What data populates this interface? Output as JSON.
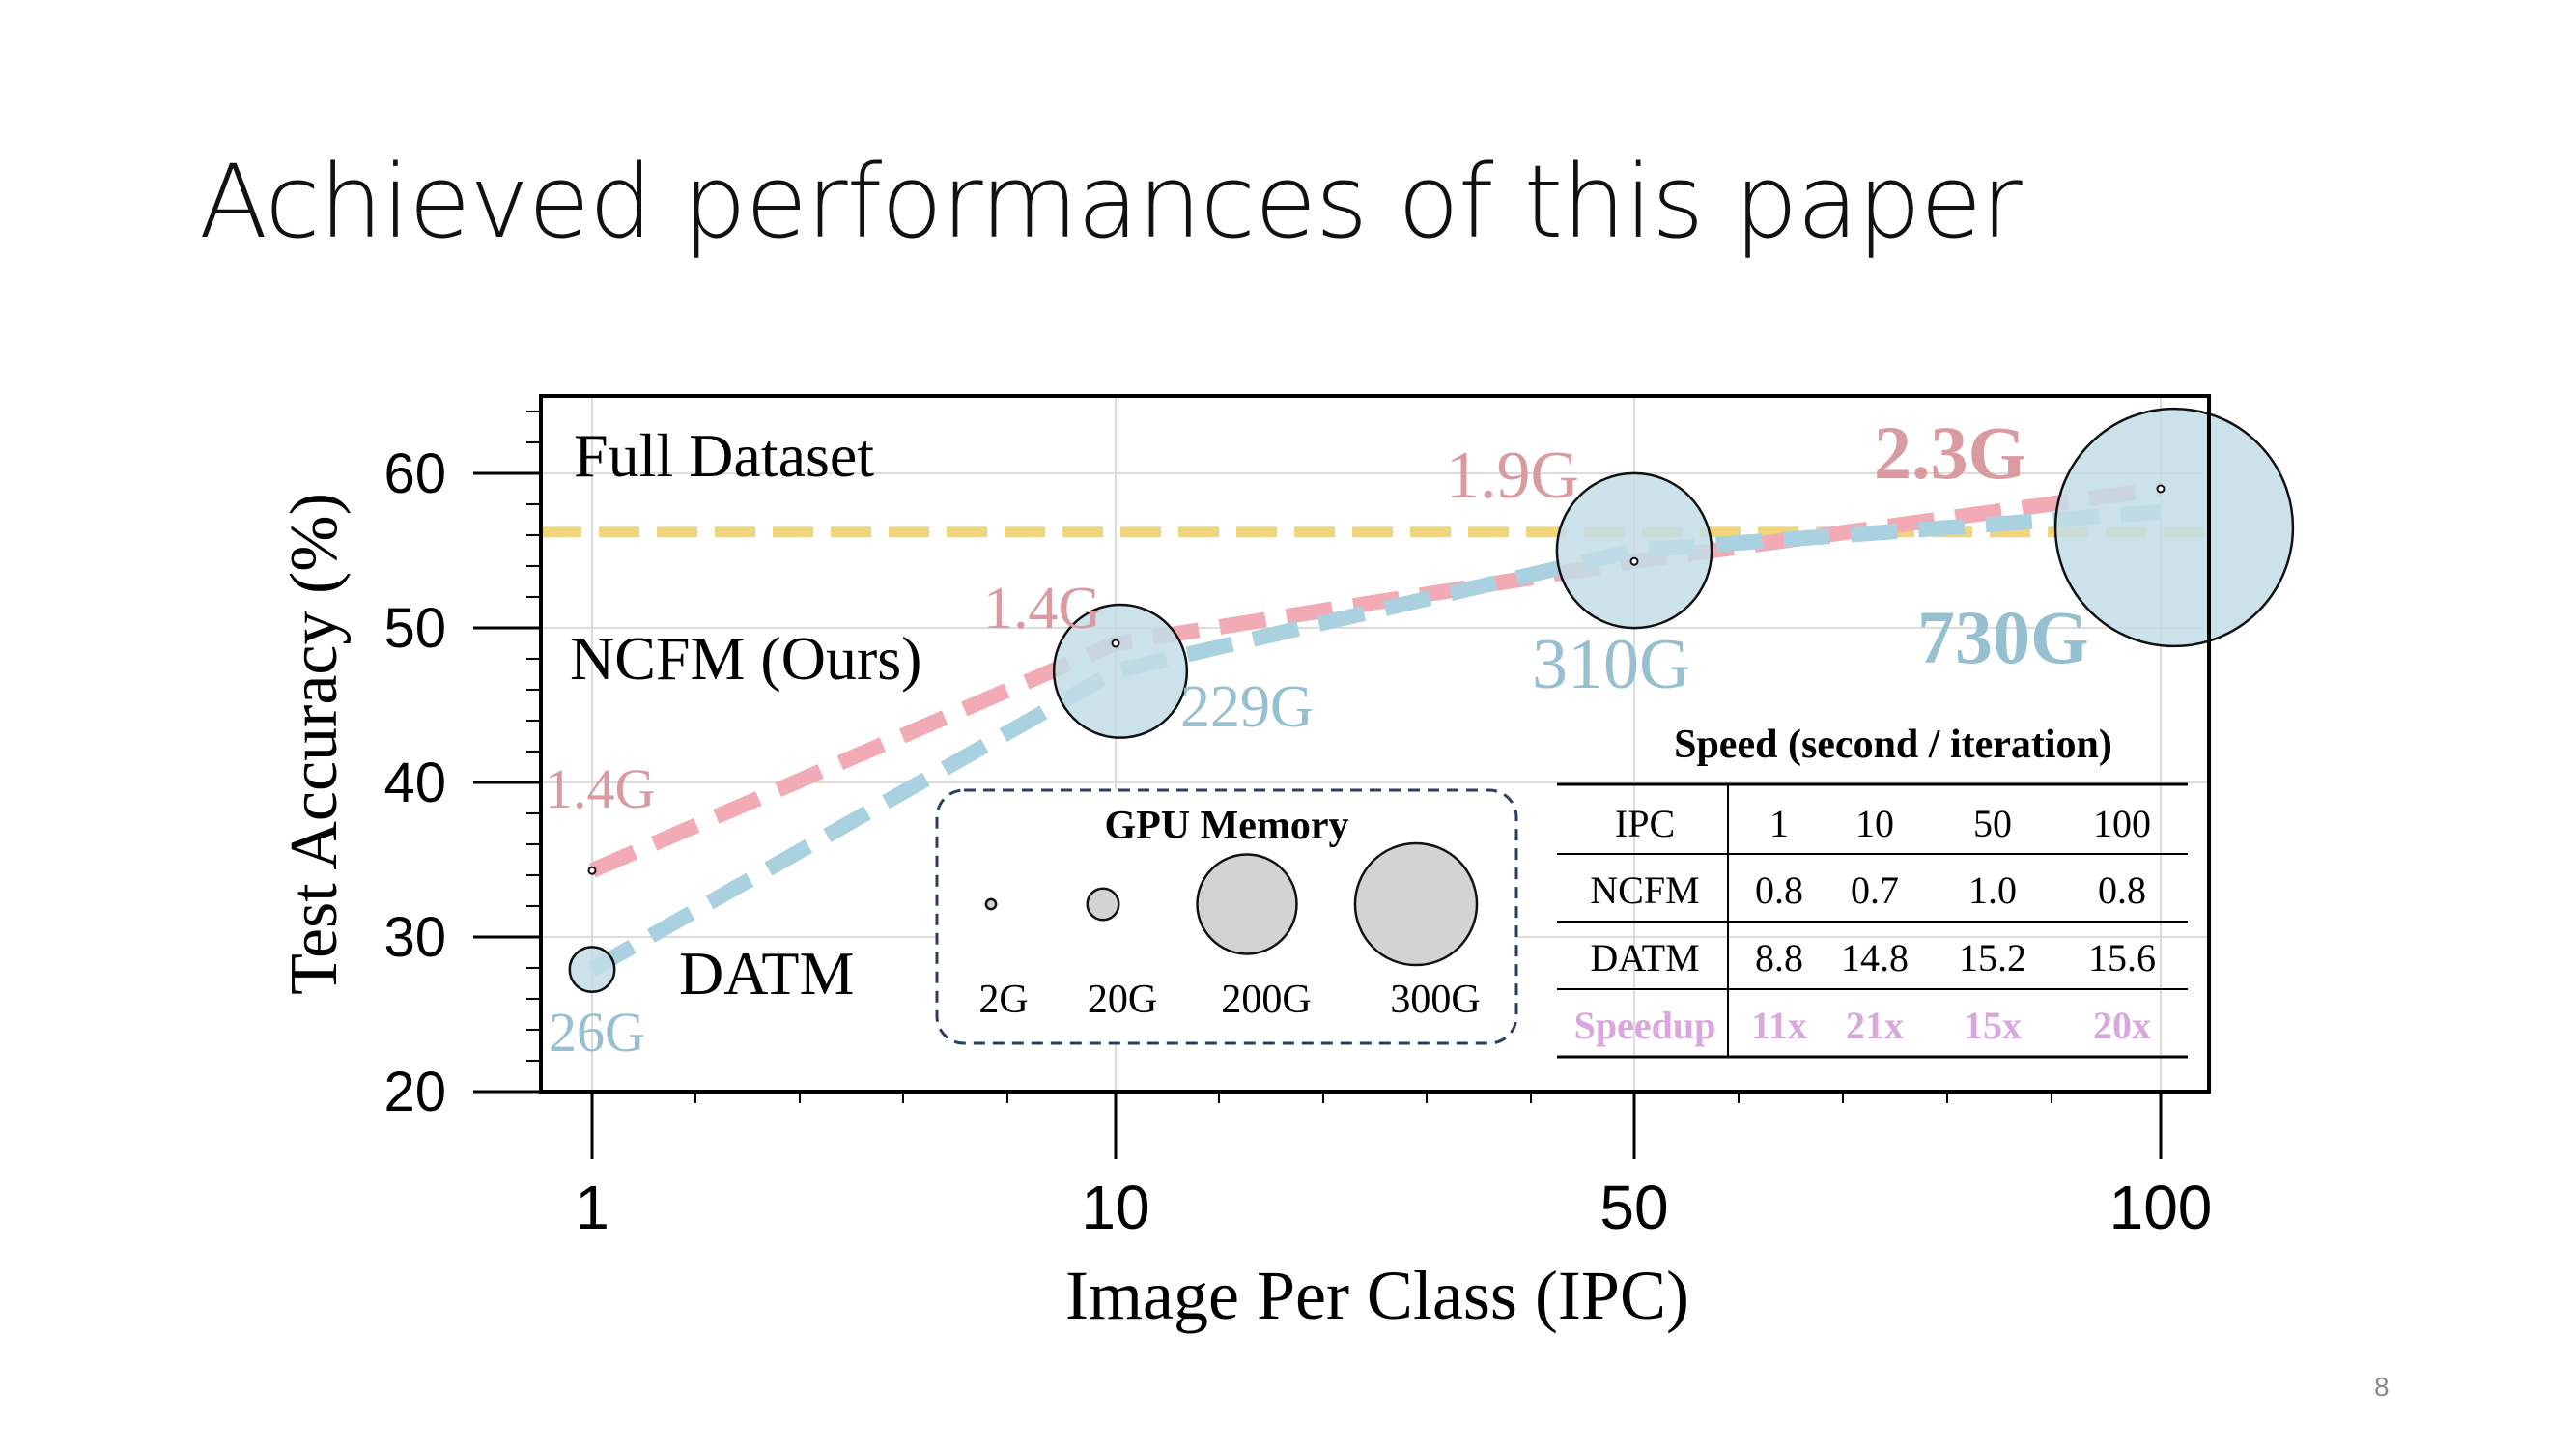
{
  "slide": {
    "title": "Achieved performances of this paper",
    "page_number": "8"
  },
  "chart_data": {
    "type": "line",
    "xlabel": "Image Per Class (IPC)",
    "ylabel": "Test Accuracy (%)",
    "x_ticks": [
      "1",
      "10",
      "50",
      "100"
    ],
    "y_ticks": [
      20,
      30,
      40,
      50,
      60
    ],
    "ylim": [
      20,
      65
    ],
    "grid": true,
    "full_dataset": {
      "label": "Full Dataset",
      "value": 56.2,
      "color": "#f0d57a"
    },
    "series": [
      {
        "name": "NCFM (Ours)",
        "color": "#f2aab4",
        "label_color": "#d99aa2",
        "x": [
          "1",
          "10",
          "50",
          "100"
        ],
        "y": [
          34.3,
          49.0,
          54.3,
          59.0
        ],
        "memory": [
          "1.4G",
          "1.4G",
          "1.9G",
          "2.3G"
        ]
      },
      {
        "name": "DATM",
        "color": "#a9d1df",
        "label_color": "#96bfcf",
        "x": [
          "1",
          "10",
          "50",
          "100"
        ],
        "y": [
          27.9,
          47.2,
          55.0,
          57.5
        ],
        "memory": [
          "26G",
          "229G",
          "310G",
          "730G"
        ]
      }
    ],
    "memory_legend": {
      "title": "GPU Memory",
      "entries": [
        "2G",
        "20G",
        "200G",
        "300G"
      ]
    },
    "speed_table": {
      "title": "Speed (second / iteration)",
      "header": [
        "IPC",
        "1",
        "10",
        "50",
        "100"
      ],
      "rows": [
        [
          "NCFM",
          "0.8",
          "0.7",
          "1.0",
          "0.8"
        ],
        [
          "DATM",
          "8.8",
          "14.8",
          "15.2",
          "15.6"
        ],
        [
          "Speedup",
          "11x",
          "21x",
          "15x",
          "20x"
        ]
      ],
      "speedup_color": "#d9a6dd"
    }
  }
}
